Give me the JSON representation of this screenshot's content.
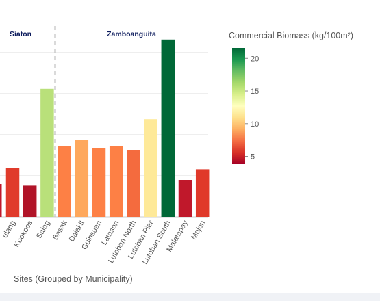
{
  "chart_data": {
    "type": "bar",
    "xlabel": "Sites (Grouped by Municipality)",
    "ylim": [
      0,
      21
    ],
    "grid": true,
    "groups": [
      {
        "name": "Siaton",
        "categories": [
          "Tulang",
          "Kookoos",
          "Salag"
        ]
      },
      {
        "name": "Zamboanguita",
        "categories": [
          "Basak",
          "Dalakit",
          "Guinsuan",
          "Latason",
          "Lutoban North",
          "Lutoban Pier",
          "Lutoban South",
          "Malatapay",
          "Mojon"
        ]
      }
    ],
    "partial_bar": {
      "value": 4.0,
      "color": "#c0182b"
    },
    "categories": [
      "Tulang",
      "Kookoos",
      "Salag",
      "Basak",
      "Dalakit",
      "Guinsuan",
      "Latason",
      "Lutoban North",
      "Lutoban Pier",
      "Lutoban South",
      "Malatapay",
      "Mojon"
    ],
    "tick_labels": [
      "ulang",
      "Kookoos",
      "Salag",
      "Basak",
      "Dalakit",
      "Guinsuan",
      "Latason",
      "Lutoban North",
      "Lutoban Pier",
      "Lutoban South",
      "Malatapay",
      "Mojon"
    ],
    "values": [
      6.0,
      3.8,
      15.6,
      8.6,
      9.4,
      8.4,
      8.6,
      8.1,
      11.9,
      21.6,
      4.5,
      5.8
    ],
    "colors": [
      "#e03b2b",
      "#b11428",
      "#b9e07a",
      "#fd8045",
      "#fea85c",
      "#fd8045",
      "#fd8045",
      "#f46b3e",
      "#fee999",
      "#006837",
      "#c0182b",
      "#e0392a"
    ],
    "colorbar": {
      "title": "Commercial Biomass (kg/100m²)",
      "min": 3.8,
      "max": 21.6,
      "ticks": [
        5,
        10,
        15,
        20
      ],
      "tick_labels": [
        "5",
        "10",
        "15",
        "20"
      ]
    }
  }
}
